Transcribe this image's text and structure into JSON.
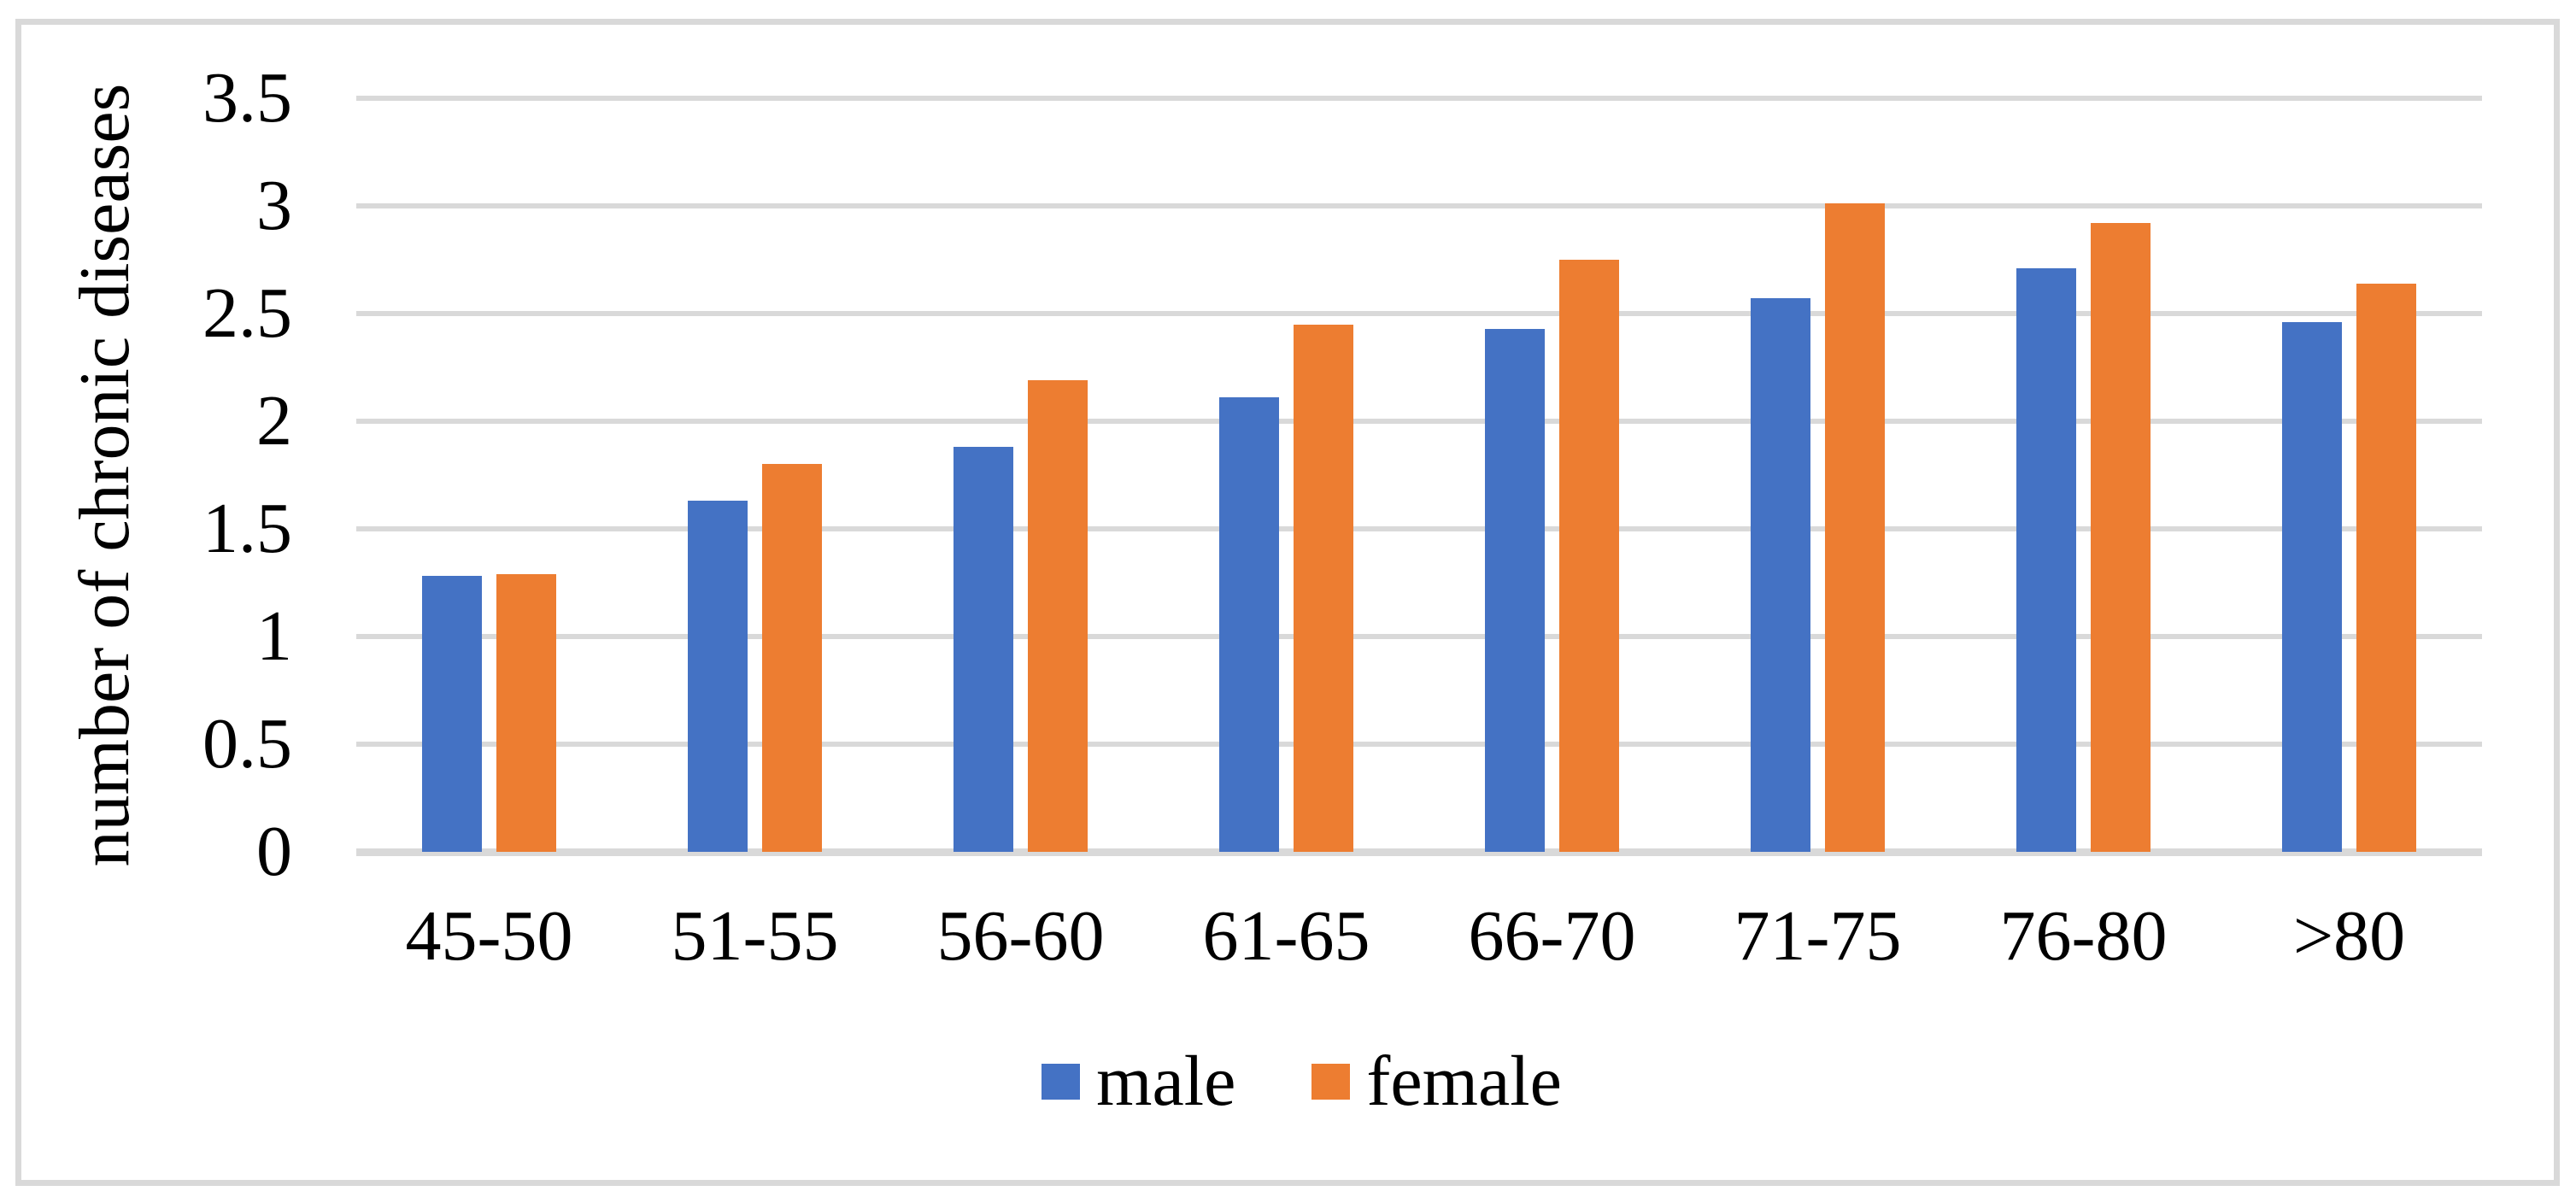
{
  "figure": {
    "background": "#FFFFFF",
    "border_color": "#D9D9D9"
  },
  "chart_data": {
    "type": "bar",
    "title": "",
    "xlabel": "",
    "ylabel": "number of chronic diseases",
    "categories": [
      "45-50",
      "51-55",
      "56-60",
      "61-65",
      "66-70",
      "71-75",
      "76-80",
      ">80"
    ],
    "series": [
      {
        "name": "male",
        "color": "#4472C4",
        "values": [
          1.28,
          1.63,
          1.88,
          2.11,
          2.43,
          2.57,
          2.71,
          2.46
        ]
      },
      {
        "name": "female",
        "color": "#ED7D31",
        "values": [
          1.29,
          1.8,
          2.19,
          2.45,
          2.75,
          3.01,
          2.92,
          2.64
        ]
      }
    ],
    "ylim": [
      0,
      3.5
    ],
    "ytick_step": 0.5,
    "yticks": [
      "0",
      "0.5",
      "1",
      "1.5",
      "2",
      "2.5",
      "3",
      "3.5"
    ],
    "grid": "horizontal",
    "gridline_color": "#D9D9D9",
    "legend_position": "bottom",
    "legend_labels": [
      "male",
      "female"
    ]
  }
}
